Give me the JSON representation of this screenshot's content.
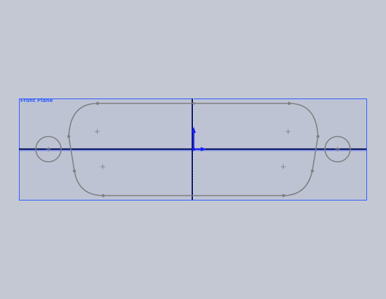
{
  "viewport": {
    "background_color": "#c4c8d3",
    "plane": {
      "label": "Front Plane",
      "border_color": "#2f5dff",
      "fill_color": "#bec3d4"
    },
    "profile_color": "#808080",
    "axis_color": "#0d1a66",
    "origin_color": "#1a1aff",
    "point_marker_color": "#808080"
  }
}
